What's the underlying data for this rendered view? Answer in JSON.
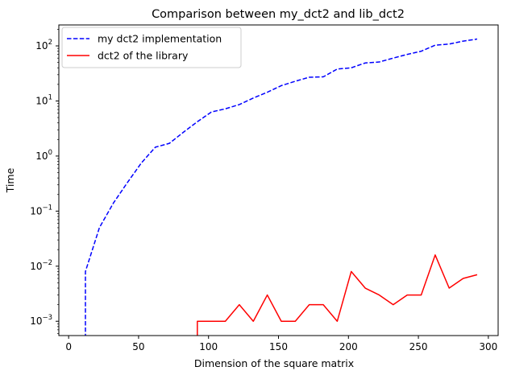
{
  "chart_data": {
    "type": "line",
    "title": "Comparison between my_dct2 and lib_dct2",
    "xlabel": "Dimension of the square matrix",
    "ylabel": "Time",
    "xlim": [
      -7,
      307
    ],
    "ylim": [
      0.00055,
      240
    ],
    "yscale": "log",
    "grid": false,
    "legend_placement": "top-left",
    "x_ticks": [
      {
        "value": 0,
        "label": "0"
      },
      {
        "value": 50,
        "label": "50"
      },
      {
        "value": 100,
        "label": "100"
      },
      {
        "value": 150,
        "label": "150"
      },
      {
        "value": 200,
        "label": "200"
      },
      {
        "value": 250,
        "label": "250"
      },
      {
        "value": 300,
        "label": "300"
      }
    ],
    "y_ticks": [
      {
        "value": 0.001,
        "base": "10",
        "exp": "−3"
      },
      {
        "value": 0.01,
        "base": "10",
        "exp": "−2"
      },
      {
        "value": 0.1,
        "base": "10",
        "exp": "−1"
      },
      {
        "value": 1,
        "base": "10",
        "exp": "0"
      },
      {
        "value": 10,
        "base": "10",
        "exp": "1"
      },
      {
        "value": 100,
        "base": "10",
        "exp": "2"
      }
    ],
    "series": [
      {
        "name": "my dct2 implementation",
        "color": "#0000ff",
        "dash": "dashed",
        "x": [
          12,
          12,
          22,
          32,
          42,
          52,
          62,
          72,
          82,
          92,
          102,
          112,
          122,
          132,
          142,
          152,
          162,
          172,
          182,
          192,
          202,
          212,
          222,
          232,
          242,
          252,
          262,
          272,
          282,
          292
        ],
        "y": [
          0.0001,
          0.008,
          0.05,
          0.14,
          0.33,
          0.75,
          1.45,
          1.7,
          2.7,
          4.2,
          6.3,
          7.2,
          8.6,
          11.3,
          14.4,
          19.0,
          22.8,
          27.0,
          27.4,
          38.0,
          40.0,
          49.0,
          51.0,
          60.0,
          70.0,
          80.0,
          103.0,
          108.0,
          122.0,
          133.0
        ]
      },
      {
        "name": "dct2 of the library",
        "color": "#ff0000",
        "dash": "solid",
        "x": [
          92,
          92,
          102,
          112,
          122,
          132,
          142,
          152,
          162,
          172,
          182,
          192,
          202,
          212,
          222,
          232,
          242,
          252,
          262,
          272,
          282,
          292
        ],
        "y": [
          0.0001,
          0.001,
          0.001,
          0.001,
          0.002,
          0.001,
          0.003,
          0.001,
          0.001,
          0.002,
          0.002,
          0.001,
          0.008,
          0.004,
          0.003,
          0.002,
          0.003,
          0.003,
          0.016,
          0.004,
          0.006,
          0.007
        ]
      }
    ]
  }
}
